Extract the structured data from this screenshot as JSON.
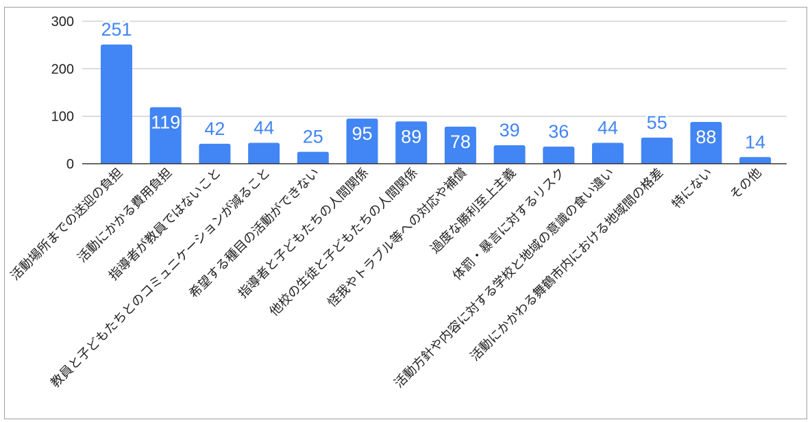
{
  "chart_title": "",
  "chart_data": {
    "type": "bar",
    "categories": [
      "活動場所までの送迎の負担",
      "活動にかかる費用負担",
      "指導者が教員ではないこと",
      "教員と子どもたちとのコミュニケーションが減ること",
      "希望する種目の活動ができない",
      "指導者と子どもたちの人間関係",
      "他校の生徒と子どもたちの人間関係",
      "怪我やトラブル等への対応や補償",
      "過度な勝利至上主義",
      "体罰・暴言に対するリスク",
      "活動方針や内容に対する学校と地域の意識の食い違い",
      "活動にかかわる舞鶴市内における地域間の格差",
      "特にない",
      "その他"
    ],
    "values": [
      251,
      119,
      42,
      44,
      25,
      95,
      89,
      78,
      39,
      36,
      44,
      55,
      88,
      14
    ],
    "ylim": [
      0,
      300
    ],
    "yticks": [
      0,
      100,
      200,
      300
    ],
    "grid": true,
    "bar_color": "#4285f4",
    "label_color": "#4285f4",
    "xlabel": "",
    "ylabel": ""
  }
}
